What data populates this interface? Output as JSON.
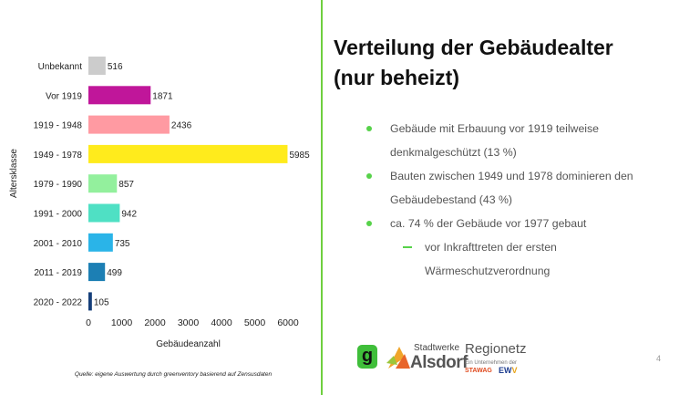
{
  "chart_data": {
    "type": "bar",
    "orientation": "horizontal",
    "categories": [
      "Unbekannt",
      "Vor 1919",
      "1919 - 1948",
      "1949 - 1978",
      "1979 - 1990",
      "1991 - 2000",
      "2001 - 2010",
      "2011 - 2019",
      "2020 - 2022"
    ],
    "values": [
      516,
      1871,
      2436,
      5985,
      857,
      942,
      735,
      499,
      105
    ],
    "colors": [
      "#cccccc",
      "#c0169a",
      "#ff9aa2",
      "#ffeb1c",
      "#93f09d",
      "#4fe0c4",
      "#2ab4e8",
      "#1c7fb4",
      "#163f7a"
    ],
    "xlabel": "Gebäudeanzahl",
    "ylabel": "Altersklasse",
    "xlim": [
      0,
      6000
    ],
    "xticks": [
      0,
      1000,
      2000,
      3000,
      4000,
      5000,
      6000
    ],
    "grid": false
  },
  "source": "Quelle: eigene Auswertung durch greenventory basierend auf Zensusdaten",
  "title_line1": "Verteilung der Gebäudealter",
  "title_line2": "(nur beheizt)",
  "bullets": [
    "Gebäude mit Erbauung vor 1919 teilweise",
    "denkmalgeschützt (13 %)",
    "Bauten zwischen 1949 und 1978 dominieren den",
    "Gebäudebestand (43 %)",
    "ca. 74 % der Gebäude vor 1977 gebaut"
  ],
  "sub_bullets": [
    "vor Inkrafttreten der ersten",
    "Wärmeschutzverordnung"
  ],
  "logos": {
    "g": "g",
    "stadtwerke": "Stadtwerke",
    "alsdorf": "Alsdorf",
    "regionetz": "Regionetz",
    "regionetz_small": "Ein Unternehmen der",
    "stawag": "STAWAG",
    "ewv_e": "EW",
    "ewv_v": "V"
  },
  "page_number": "4",
  "accent": "#57d24a"
}
